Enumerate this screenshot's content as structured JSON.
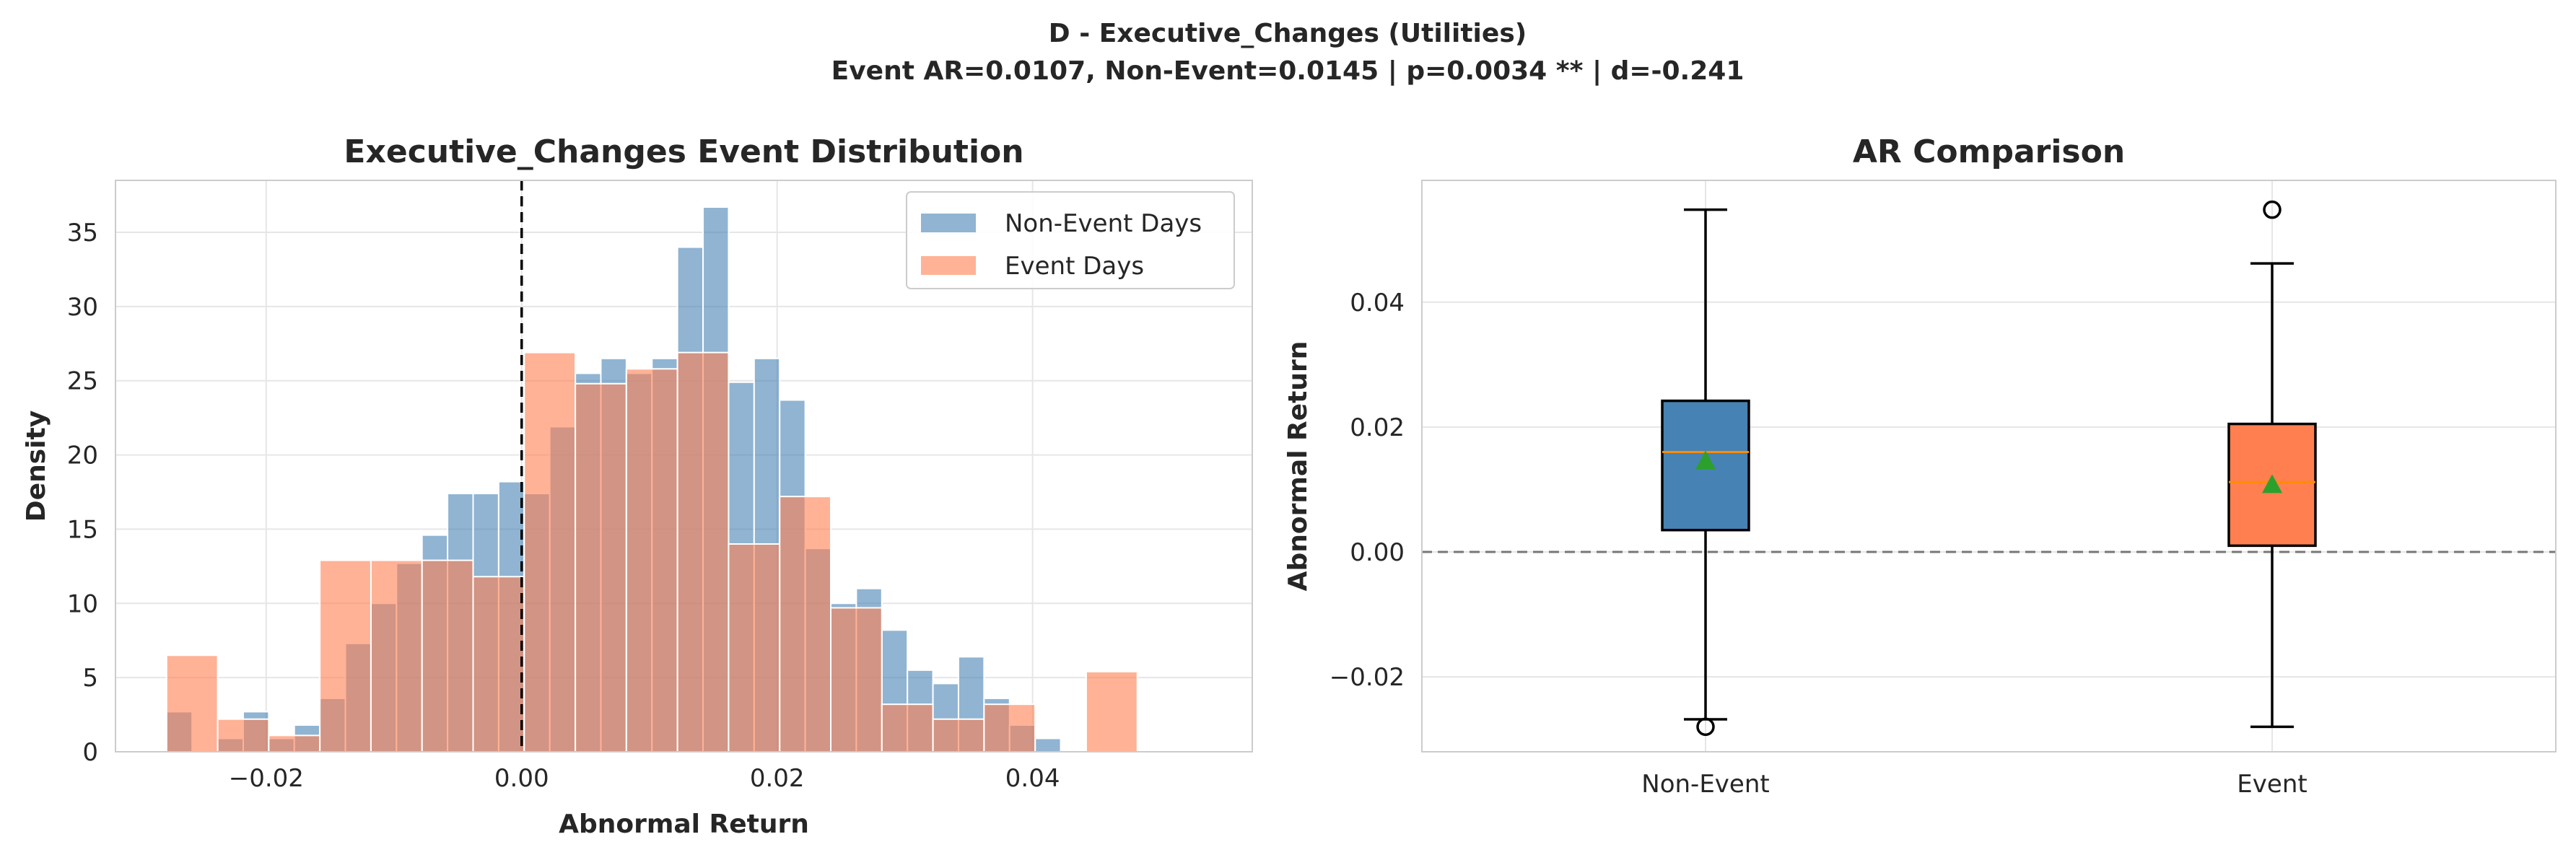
{
  "suptitle": {
    "line1": "D - Executive_Changes (Utilities)",
    "line2": "Event AR=0.0107, Non-Event=0.0145 | p=0.0034 ** | d=-0.241"
  },
  "colors": {
    "non_event": "#4682b4",
    "event": "#ff7f50",
    "mean_marker": "#2ca02c",
    "median": "#ff8c00",
    "grid": "#e6e6e6",
    "spine": "#cccccc"
  },
  "chart_data": [
    {
      "type": "histogram",
      "title": "Executive_Changes Event Distribution",
      "xlabel": "Abnormal Return",
      "ylabel": "Density",
      "xlim": [
        -0.0318,
        0.0572
      ],
      "ylim": [
        0,
        38.5
      ],
      "xticks": [
        -0.02,
        0.0,
        0.02,
        0.04
      ],
      "xtick_labels": [
        "−0.02",
        "0.00",
        "0.02",
        "0.04"
      ],
      "yticks": [
        0,
        5,
        10,
        15,
        20,
        25,
        30,
        35
      ],
      "ytick_labels": [
        "0",
        "5",
        "10",
        "15",
        "20",
        "25",
        "30",
        "35"
      ],
      "grid": true,
      "legend_position": "upper right",
      "vline": {
        "x": 0.0,
        "style": "dashed",
        "color": "#000000"
      },
      "series": [
        {
          "name": "Non-Event Days",
          "color": "#4682b4",
          "opacity": 0.6,
          "bin_start": -0.0278,
          "bin_width": 0.002,
          "values": [
            2.7,
            0.0,
            0.9,
            2.7,
            0.9,
            1.8,
            3.6,
            7.3,
            10.0,
            12.7,
            14.6,
            17.4,
            17.4,
            18.2,
            17.4,
            21.9,
            25.5,
            26.5,
            25.5,
            26.5,
            34.0,
            36.7,
            24.9,
            26.5,
            23.7,
            13.7,
            10.0,
            11.0,
            8.2,
            5.5,
            4.6,
            6.4,
            3.6,
            1.8,
            0.9,
            0.0
          ]
        },
        {
          "name": "Event Days",
          "color": "#ff7f50",
          "opacity": 0.6,
          "bin_start": -0.0278,
          "bin_width": 0.004,
          "values": [
            6.5,
            2.2,
            1.1,
            12.9,
            12.9,
            12.9,
            11.8,
            26.9,
            24.8,
            25.8,
            26.9,
            14.0,
            17.2,
            9.7,
            3.2,
            2.2,
            3.2,
            0.0,
            5.4
          ]
        }
      ]
    },
    {
      "type": "box",
      "title": "AR Comparison",
      "xlabel": "",
      "ylabel": "Abnormal Return",
      "ylim": [
        -0.032,
        0.0595
      ],
      "yticks": [
        -0.02,
        0.0,
        0.02,
        0.04
      ],
      "ytick_labels": [
        "−0.02",
        "0.00",
        "0.02",
        "0.04"
      ],
      "grid": true,
      "hline": {
        "y": 0.0,
        "style": "dashed",
        "color": "#777777"
      },
      "categories": [
        "Non-Event",
        "Event"
      ],
      "boxes": [
        {
          "name": "Non-Event",
          "color": "#4682b4",
          "whisker_low": -0.0268,
          "q1": 0.0035,
          "median": 0.016,
          "q3": 0.0242,
          "whisker_high": 0.0548,
          "mean": 0.0145,
          "outliers": [
            -0.028
          ]
        },
        {
          "name": "Event",
          "color": "#ff7f50",
          "whisker_low": -0.028,
          "q1": 0.001,
          "median": 0.0112,
          "q3": 0.0205,
          "whisker_high": 0.0462,
          "mean": 0.0107,
          "outliers": [
            0.0548
          ]
        }
      ]
    }
  ]
}
